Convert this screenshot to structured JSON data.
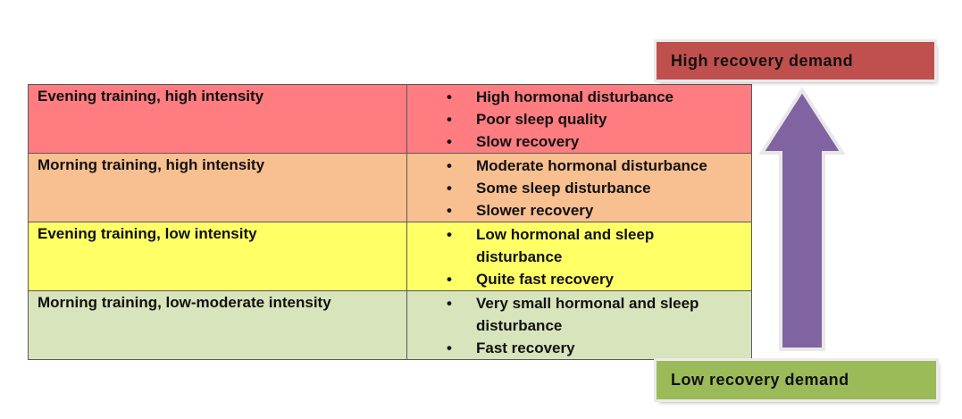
{
  "rows": [
    {
      "condition": "Evening training, high intensity",
      "effects": [
        "High hormonal disturbance",
        "Poor sleep quality",
        "Slow recovery"
      ],
      "color": "#ff7c80"
    },
    {
      "condition": "Morning training, high intensity",
      "effects": [
        "Moderate hormonal disturbance",
        "Some sleep disturbance",
        "Slower recovery"
      ],
      "color": "#f8bf90"
    },
    {
      "condition": "Evening training, low intensity",
      "effects": [
        "Low hormonal and sleep disturbance",
        "Quite fast recovery"
      ],
      "color": "#ffff66"
    },
    {
      "condition": "Morning training, low-moderate intensity",
      "effects": [
        "Very small hormonal and sleep disturbance",
        "Fast recovery"
      ],
      "color": "#d8e4bc"
    }
  ],
  "bullet": "•",
  "high_label": {
    "text": "High recovery demand",
    "color": "#c0504d"
  },
  "low_label": {
    "text": "Low recovery demand",
    "color": "#9bbb59"
  },
  "arrow": {
    "icon": "up-arrow-icon",
    "color": "#8064a2"
  }
}
